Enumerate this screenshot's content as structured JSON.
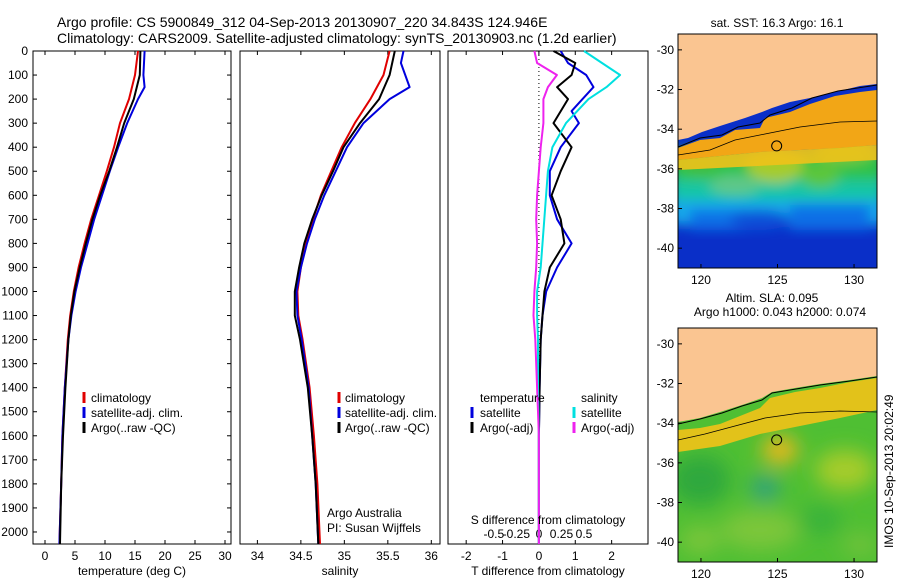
{
  "header": {
    "line1": "Argo profile: CS 5900849_312 04-Sep-2013 20130907_220 34.843S 124.946E",
    "line2": "Climatology: CARS2009. Satellite-adjusted climatology: synTS_20130903.nc (1.2d earlier)"
  },
  "credit": {
    "line1": "Argo Australia",
    "line2": "PI: Susan Wijffels"
  },
  "side_stamp": "IMOS 10-Sep-2013 20:02:49",
  "colors": {
    "climatology": "#e00000",
    "satellite": "#0000dd",
    "argo": "#000000",
    "sal_sat": "#00e0e0",
    "sal_argo": "#ee22ee",
    "land": "#fac591"
  },
  "chart_data": [
    {
      "type": "line",
      "name": "temperature",
      "xlabel": "temperature (deg C)",
      "ylabel": "",
      "xlim": [
        -2,
        31
      ],
      "ylim": [
        2050,
        0
      ],
      "x_ticks": [
        "0",
        "5",
        "10",
        "15",
        "20",
        "25",
        "30"
      ],
      "y_ticks": [
        "0",
        "100",
        "200",
        "300",
        "400",
        "500",
        "600",
        "700",
        "800",
        "900",
        "1000",
        "1100",
        "1200",
        "1300",
        "1400",
        "1500",
        "1600",
        "1700",
        "1800",
        "1900",
        "2000"
      ],
      "legend": [
        "climatology",
        "satellite-adj. clim.",
        "Argo(..raw -QC)"
      ],
      "series": [
        {
          "name": "climatology",
          "depth": [
            0,
            100,
            200,
            300,
            400,
            500,
            600,
            700,
            800,
            900,
            1000,
            1100,
            1200,
            1400,
            1600,
            1800,
            2050
          ],
          "values": [
            15.5,
            15.0,
            14.0,
            12.5,
            11.5,
            10.3,
            9.0,
            7.7,
            6.6,
            5.6,
            4.8,
            4.2,
            3.8,
            3.3,
            2.9,
            2.7,
            2.4
          ]
        },
        {
          "name": "satellite-adj. clim.",
          "depth": [
            0,
            100,
            150,
            200,
            300,
            400,
            500,
            600,
            700,
            800,
            900,
            1000,
            1100,
            1200,
            1400,
            1600,
            1800,
            2050
          ],
          "values": [
            16.6,
            16.4,
            16.6,
            15.5,
            13.7,
            12.2,
            10.8,
            9.5,
            8.2,
            7.1,
            6.0,
            5.1,
            4.4,
            3.9,
            3.3,
            2.9,
            2.7,
            2.4
          ]
        },
        {
          "name": "Argo(..raw -QC)",
          "depth": [
            0,
            100,
            200,
            300,
            400,
            500,
            600,
            700,
            800,
            900,
            1000,
            1100,
            1200,
            1400,
            1600,
            1800,
            2050
          ],
          "values": [
            15.9,
            15.8,
            14.8,
            13.2,
            12.0,
            10.7,
            9.2,
            7.9,
            6.8,
            5.8,
            4.9,
            4.3,
            3.9,
            3.4,
            3.0,
            2.7,
            2.5
          ]
        }
      ]
    },
    {
      "type": "line",
      "name": "salinity",
      "xlabel": "salinity",
      "ylabel": "",
      "xlim": [
        33.8,
        36.1
      ],
      "ylim": [
        2050,
        0
      ],
      "x_ticks": [
        "34",
        "34.5",
        "35",
        "35.5",
        "36"
      ],
      "legend": [
        "climatology",
        "satellite-adj. clim.",
        "Argo(..raw -QC)"
      ],
      "series": [
        {
          "name": "climatology",
          "depth": [
            0,
            100,
            200,
            300,
            400,
            500,
            600,
            700,
            800,
            900,
            1000,
            1100,
            1200,
            1400,
            1600,
            1800,
            2050
          ],
          "values": [
            35.52,
            35.45,
            35.3,
            35.12,
            34.97,
            34.85,
            34.73,
            34.64,
            34.56,
            34.5,
            34.46,
            34.47,
            34.52,
            34.6,
            34.65,
            34.69,
            34.72
          ]
        },
        {
          "name": "satellite-adj. clim.",
          "depth": [
            0,
            50,
            150,
            200,
            300,
            400,
            500,
            600,
            700,
            800,
            900,
            1000,
            1100,
            1200,
            1400,
            1600,
            1800,
            2050
          ],
          "values": [
            35.68,
            35.65,
            35.75,
            35.52,
            35.22,
            35.03,
            34.9,
            34.77,
            34.66,
            34.57,
            34.5,
            34.45,
            34.46,
            34.51,
            34.59,
            34.63,
            34.67,
            34.7
          ]
        },
        {
          "name": "Argo(..raw -QC)",
          "depth": [
            0,
            100,
            200,
            300,
            400,
            500,
            600,
            700,
            800,
            900,
            1000,
            1100,
            1200,
            1400,
            1600,
            1800,
            2050
          ],
          "values": [
            35.58,
            35.52,
            35.4,
            35.18,
            34.99,
            34.87,
            34.74,
            34.63,
            34.54,
            34.48,
            34.43,
            34.43,
            34.49,
            34.58,
            34.63,
            34.67,
            34.7
          ]
        }
      ]
    },
    {
      "type": "line",
      "name": "difference",
      "xlabel": "T difference from climatology",
      "xlabel_top": "S difference from climatology",
      "xlim": [
        -2.5,
        3.0
      ],
      "ylim": [
        2050,
        0
      ],
      "x_ticks": [
        "-2",
        "-1",
        "0",
        "1",
        "2"
      ],
      "x_ticks_top": [
        "-0.5",
        "-0.25",
        "0",
        "0.25",
        "0.5"
      ],
      "legend_headers": [
        "temperature",
        "salinity"
      ],
      "legend": [
        "satellite",
        "Argo(-adj)",
        "satellite",
        "Argo(-adj)"
      ],
      "series": [
        {
          "name": "satellite",
          "group": "temperature",
          "depth": [
            0,
            50,
            100,
            150,
            200,
            250,
            300,
            400,
            500,
            600,
            700,
            800,
            900,
            1000,
            1100,
            1200,
            1400,
            1600,
            1800,
            2050
          ],
          "values": [
            0.6,
            0.8,
            1.3,
            1.5,
            1.2,
            0.9,
            1.1,
            0.6,
            0.3,
            0.3,
            0.5,
            0.9,
            0.5,
            0.2,
            0.1,
            0.05,
            0.02,
            0.0,
            0.0,
            0.0
          ]
        },
        {
          "name": "Argo(-adj)",
          "group": "temperature",
          "depth": [
            0,
            50,
            100,
            150,
            200,
            300,
            400,
            500,
            600,
            700,
            800,
            900,
            1000,
            1100,
            1200,
            1400,
            1600,
            1800,
            2050
          ],
          "values": [
            0.4,
            1.0,
            0.9,
            0.5,
            0.8,
            0.4,
            0.9,
            0.6,
            0.35,
            0.6,
            0.7,
            0.3,
            0.15,
            0.1,
            0.05,
            0.02,
            0.0,
            0.0,
            0.0
          ]
        },
        {
          "name": "satellite",
          "group": "salinity",
          "depth": [
            0,
            50,
            100,
            150,
            200,
            300,
            400,
            500,
            600,
            700,
            800,
            900,
            1000,
            1100,
            1200,
            1400,
            1600,
            1800,
            2050
          ],
          "values": [
            0.5,
            0.7,
            0.9,
            0.75,
            0.55,
            0.3,
            0.15,
            0.1,
            0.08,
            0.06,
            0.04,
            0.02,
            -0.02,
            -0.02,
            -0.01,
            -0.01,
            0.0,
            0.0,
            0.0
          ]
        },
        {
          "name": "Argo(-adj)",
          "group": "salinity",
          "depth": [
            0,
            50,
            100,
            150,
            200,
            300,
            400,
            500,
            600,
            700,
            800,
            900,
            1000,
            1100,
            1200,
            1400,
            1600,
            1800,
            2050
          ],
          "values": [
            -0.05,
            -0.02,
            0.2,
            0.1,
            0.05,
            0.05,
            0.02,
            0.0,
            -0.02,
            -0.03,
            -0.02,
            -0.03,
            -0.05,
            -0.06,
            -0.04,
            -0.02,
            0.0,
            0.0,
            0.0
          ]
        }
      ]
    },
    {
      "type": "heatmap",
      "name": "sst-map",
      "title": "sat. SST: 16.3 Argo: 16.1",
      "xlim": [
        118.5,
        131.5
      ],
      "ylim": [
        -41,
        -29.2
      ],
      "x_ticks": [
        "120",
        "125",
        "130"
      ],
      "y_ticks": [
        "-30",
        "-32",
        "-34",
        "-36",
        "-38",
        "-40"
      ],
      "argo_position": {
        "lon": 124.946,
        "lat": -34.843
      }
    },
    {
      "type": "heatmap",
      "name": "sla-map",
      "title_line1": "Altim. SLA: 0.095",
      "title_line2": "Argo h1000: 0.043 h2000: 0.074",
      "xlim": [
        118.5,
        131.5
      ],
      "ylim": [
        -41,
        -29.2
      ],
      "x_ticks": [
        "120",
        "125",
        "130"
      ],
      "y_ticks": [
        "-30",
        "-32",
        "-34",
        "-36",
        "-38",
        "-40"
      ],
      "argo_position": {
        "lon": 124.946,
        "lat": -34.843
      }
    }
  ]
}
